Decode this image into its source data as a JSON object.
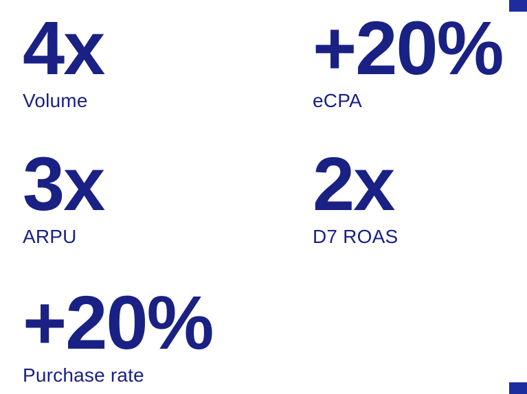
{
  "colors": {
    "accent": "#1a2184",
    "corner": "#1e2d9e"
  },
  "stats": [
    {
      "value": "4x",
      "label": "Volume"
    },
    {
      "value": "+20%",
      "label": "eCPA"
    },
    {
      "value": "3x",
      "label": "ARPU"
    },
    {
      "value": "2x",
      "label": "D7 ROAS"
    },
    {
      "value": "+20%",
      "label": "Purchase rate"
    }
  ]
}
